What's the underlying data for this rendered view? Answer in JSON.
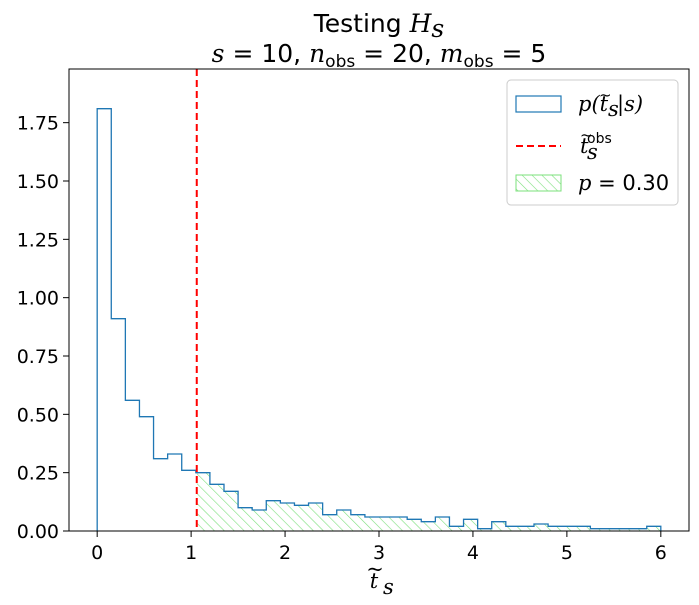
{
  "chart_data": {
    "type": "histogram",
    "title_line1": "Testing H_s",
    "title_line2": "s = 10, n_obs = 20, m_obs = 5",
    "xlabel": "t̃_s",
    "ylabel": "",
    "xlim": [
      -0.3,
      6.3
    ],
    "ylim": [
      0,
      1.98
    ],
    "x_ticks": [
      0,
      1,
      2,
      3,
      4,
      5,
      6
    ],
    "x_tick_labels": [
      "0",
      "1",
      "2",
      "3",
      "4",
      "5",
      "6"
    ],
    "y_ticks": [
      0,
      0.25,
      0.5,
      0.75,
      1.0,
      1.25,
      1.5,
      1.75
    ],
    "y_tick_labels": [
      "0.00",
      "0.25",
      "0.50",
      "0.75",
      "1.00",
      "1.25",
      "1.50",
      "1.75"
    ],
    "bin_edges": [
      0,
      0.15,
      0.3,
      0.45,
      0.6,
      0.75,
      0.9,
      1.05,
      1.2,
      1.35,
      1.5,
      1.65,
      1.8,
      1.95,
      2.1,
      2.25,
      2.4,
      2.55,
      2.7,
      2.85,
      3.0,
      3.15,
      3.3,
      3.45,
      3.6,
      3.75,
      3.9,
      4.05,
      4.2,
      4.35,
      4.5,
      4.65,
      4.8,
      4.95,
      5.1,
      5.25,
      5.4,
      5.55,
      5.7,
      5.85,
      6.0
    ],
    "values": [
      1.81,
      0.91,
      0.56,
      0.49,
      0.31,
      0.33,
      0.26,
      0.25,
      0.2,
      0.17,
      0.1,
      0.09,
      0.13,
      0.12,
      0.11,
      0.12,
      0.07,
      0.09,
      0.07,
      0.06,
      0.06,
      0.06,
      0.05,
      0.04,
      0.06,
      0.02,
      0.05,
      0.01,
      0.04,
      0.02,
      0.02,
      0.03,
      0.02,
      0.02,
      0.02,
      0.01,
      0.01,
      0.01,
      0.01,
      0.02
    ],
    "observed_statistic": 1.06,
    "p_value": 0.3,
    "colors": {
      "histogram": "#1f77b4",
      "observed_line": "#ff0000",
      "p_region": "#7be07b"
    },
    "legend": {
      "position": "top-right",
      "entries": [
        {
          "label": "p(t̃_s|s)",
          "style": "outline"
        },
        {
          "label": "t̃_s^obs",
          "style": "dashed-line"
        },
        {
          "label": "p = 0.30",
          "style": "hatched"
        }
      ]
    },
    "grid": false
  }
}
